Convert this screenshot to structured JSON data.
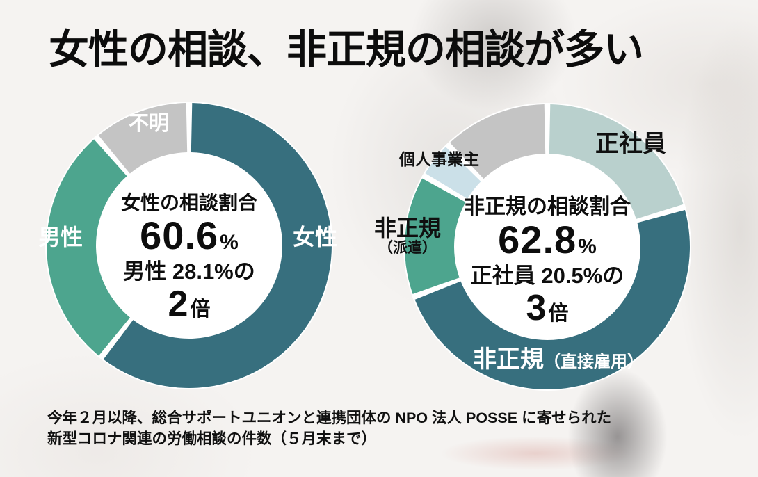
{
  "title": "女性の相談、非正規の相談が多い",
  "caption": {
    "line1": "今年２月以降、総合サポートユニオンと連携団体の NPO 法人 POSSE に寄せられた",
    "line2": "新型コロナ関連の労働相談の件数（５月末まで）"
  },
  "colors": {
    "dark_teal": "#376F7E",
    "green": "#4DA58E",
    "gray": "#C4C4C4",
    "pale_teal": "#B9D0CD",
    "pale_blue": "#CBE0E8",
    "background": "#F5F3F1",
    "text_dark": "#101010",
    "text_light": "#FFFFFF"
  },
  "chart_data": [
    {
      "type": "pie",
      "subtype": "donut",
      "name": "gender-consultation-share",
      "start_angle": 0,
      "clockwise": true,
      "gap_deg": 1.2,
      "legend": "labels-on-slices",
      "center": {
        "title": "女性の相談割合",
        "value": "60.6",
        "unit": "%",
        "compare": "男性 28.1%の",
        "times": "2",
        "times_unit": "倍"
      },
      "slices": [
        {
          "label": "女性",
          "value": 60.6,
          "color": "#376F7E",
          "label_color": "#FFFFFF"
        },
        {
          "label": "男性",
          "value": 28.1,
          "color": "#4DA58E",
          "label_color": "#FFFFFF"
        },
        {
          "label": "不明",
          "value": 11.3,
          "color": "#C4C4C4",
          "label_color": "#FFFFFF"
        }
      ]
    },
    {
      "type": "pie",
      "subtype": "donut",
      "name": "employment-type-consultation-share",
      "start_angle": 0,
      "clockwise": true,
      "gap_deg": 1.2,
      "legend": "labels-on-slices",
      "center": {
        "title": "非正規の相談割合",
        "value": "62.8",
        "unit": "%",
        "compare": "正社員 20.5%の",
        "times": "3",
        "times_unit": "倍"
      },
      "slices": [
        {
          "label": "正社員",
          "value": 20.5,
          "color": "#B9D0CD",
          "label_color": "#101010"
        },
        {
          "label": "非正規（直接雇用）",
          "label_main": "非正規",
          "label_sub": "（直接雇用）",
          "value": 48.8,
          "color": "#376F7E",
          "label_color": "#FFFFFF"
        },
        {
          "label": "非正規（派遣）",
          "label_main": "非正規",
          "label_sub": "（派遣）",
          "value": 14.0,
          "color": "#4DA58E",
          "label_color": "#101010"
        },
        {
          "label": "個人事業主",
          "value": 4.4,
          "color": "#CBE0E8",
          "label_color": "#101010"
        },
        {
          "label": "",
          "value": 12.3,
          "color": "#C4C4C4",
          "label_color": null
        }
      ]
    }
  ]
}
